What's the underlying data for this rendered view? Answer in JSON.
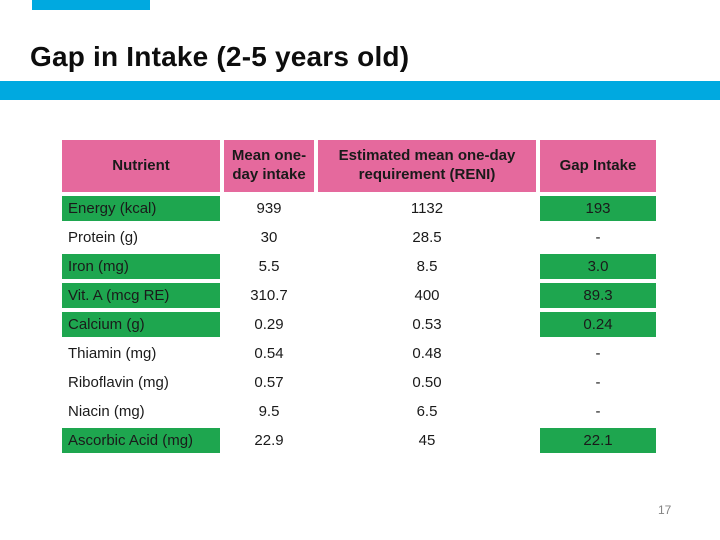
{
  "slide": {
    "title": "Gap in Intake (2-5 years old)",
    "page_number": "17"
  },
  "table": {
    "columns": [
      "Nutrient",
      "Mean one-\nday intake",
      "Estimated mean one-day\nrequirement (RENI)",
      "Gap Intake"
    ],
    "rows": [
      {
        "nutrient": "Energy (kcal)",
        "intake": "939",
        "reni": "1132",
        "gap": "193",
        "highlight": true
      },
      {
        "nutrient": "Protein (g)",
        "intake": "30",
        "reni": "28.5",
        "gap": "-",
        "highlight": false
      },
      {
        "nutrient": "Iron (mg)",
        "intake": "5.5",
        "reni": "8.5",
        "gap": "3.0",
        "highlight": true
      },
      {
        "nutrient": "Vit. A (mcg RE)",
        "intake": "310.7",
        "reni": "400",
        "gap": "89.3",
        "highlight": true
      },
      {
        "nutrient": "Calcium (g)",
        "intake": "0.29",
        "reni": "0.53",
        "gap": "0.24",
        "highlight": true
      },
      {
        "nutrient": "Thiamin (mg)",
        "intake": "0.54",
        "reni": "0.48",
        "gap": "-",
        "highlight": false
      },
      {
        "nutrient": "Riboflavin (mg)",
        "intake": "0.57",
        "reni": "0.50",
        "gap": "-",
        "highlight": false
      },
      {
        "nutrient": "Niacin (mg)",
        "intake": "9.5",
        "reni": "6.5",
        "gap": "-",
        "highlight": false
      },
      {
        "nutrient": "Ascorbic Acid (mg)",
        "intake": "22.9",
        "reni": "45",
        "gap": "22.1",
        "highlight": true
      }
    ]
  },
  "colors": {
    "accent_cyan": "#00a9e0",
    "header_pink": "#e5699d",
    "highlight_green": "#1ea64f"
  }
}
